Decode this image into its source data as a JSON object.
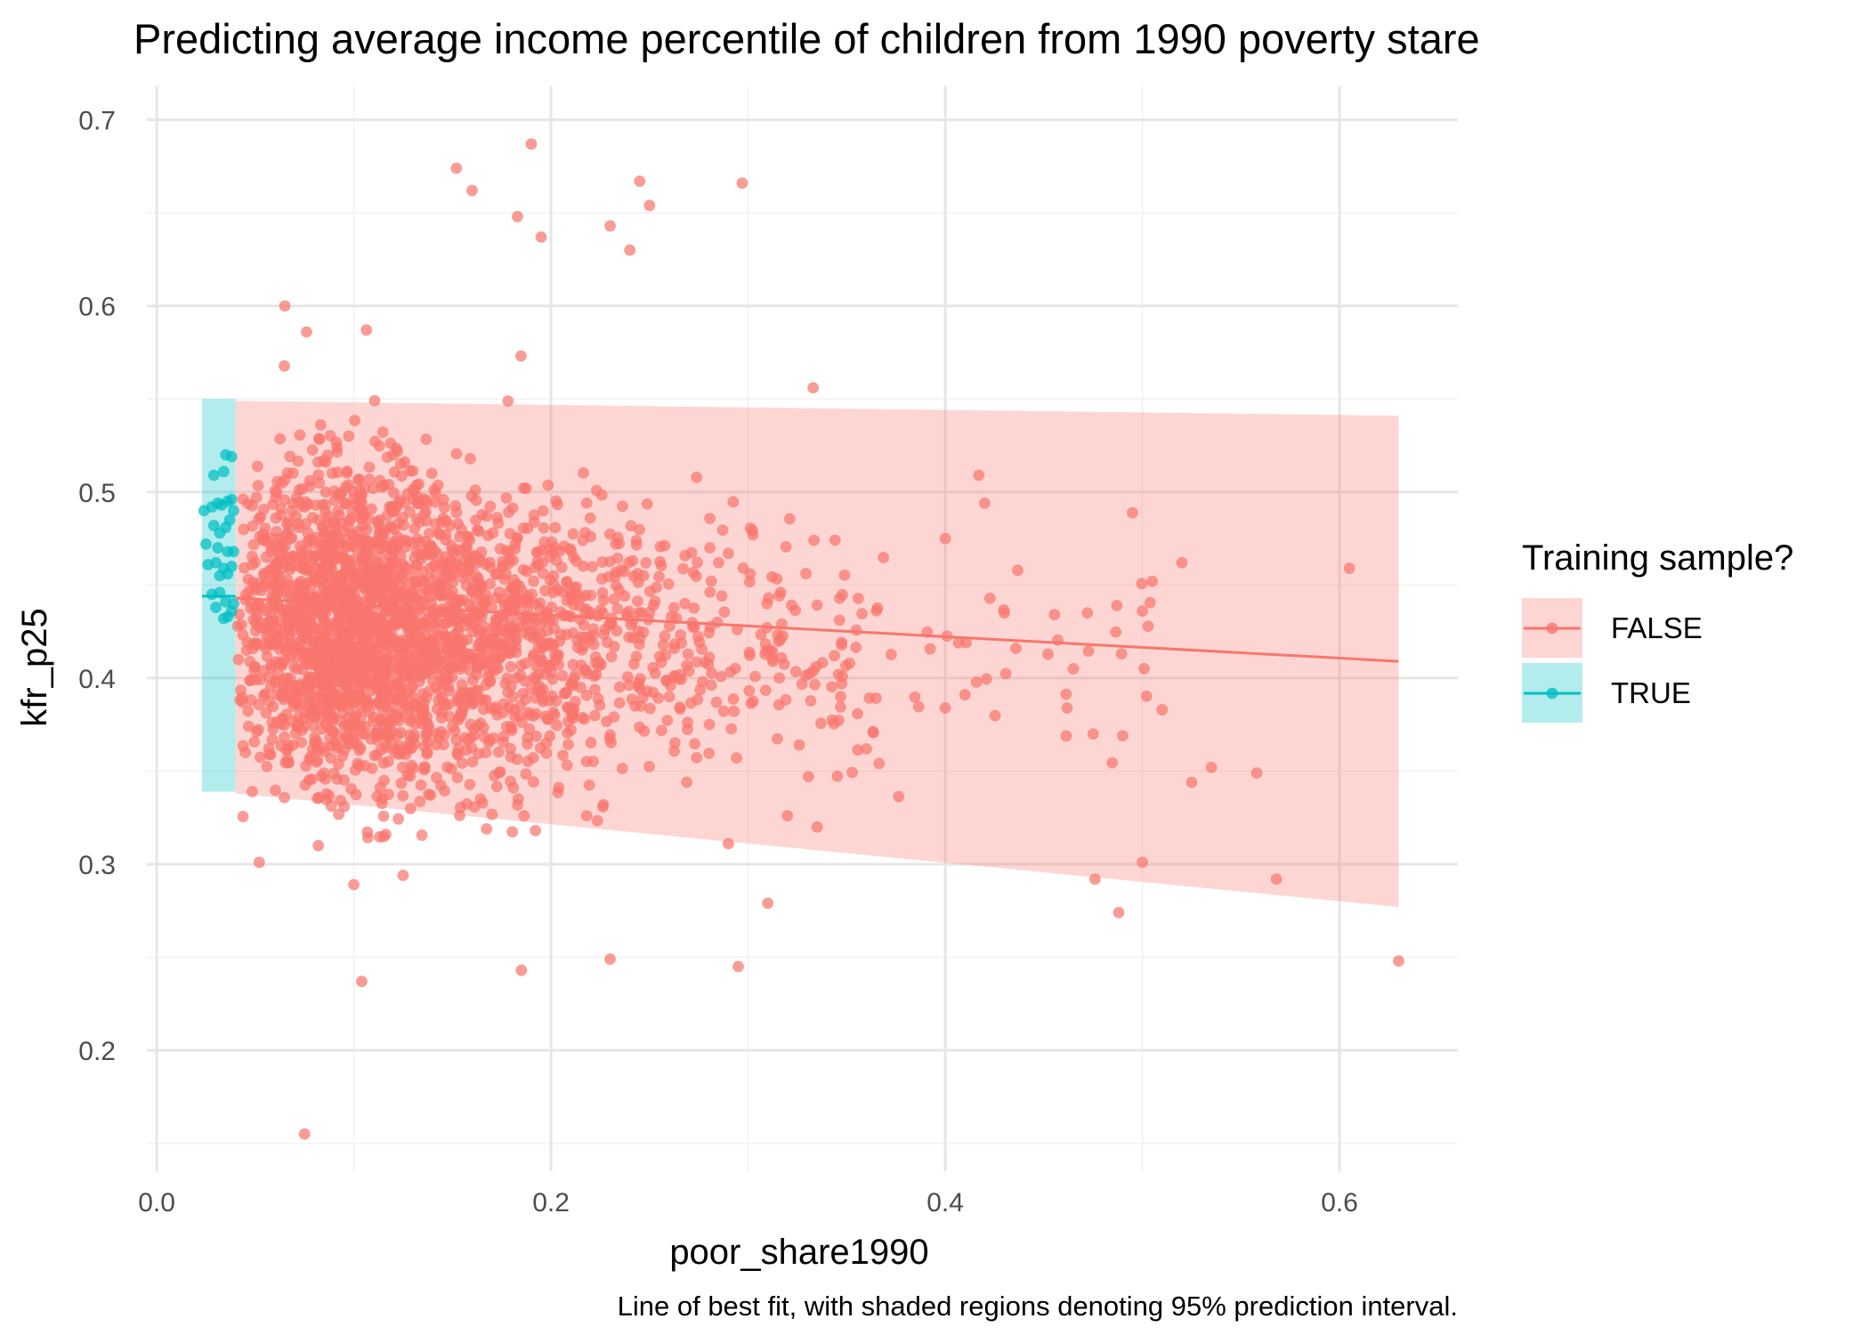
{
  "chart_data": {
    "type": "scatter",
    "title": "Predicting average income percentile of children from 1990 poverty stare",
    "subtitle": "",
    "caption": "Line of best fit, with shaded regions denoting 95% prediction interval.",
    "xlabel": "poor_share1990",
    "ylabel": "kfr_p25",
    "xlim": [
      -0.005,
      0.66
    ],
    "ylim": [
      0.135,
      0.718
    ],
    "x_ticks": [
      0.0,
      0.2,
      0.4,
      0.6
    ],
    "x_tick_labels": [
      "0.0",
      "0.2",
      "0.4",
      "0.6"
    ],
    "y_ticks": [
      0.2,
      0.3,
      0.4,
      0.5,
      0.6,
      0.7
    ],
    "y_tick_labels": [
      "0.2",
      "0.3",
      "0.4",
      "0.5",
      "0.6",
      "0.7"
    ],
    "grid": true,
    "legend": {
      "title": "Training sample?",
      "position": "right",
      "entries": [
        "FALSE",
        "TRUE"
      ]
    },
    "colors": {
      "FALSE": "#F8766D",
      "TRUE": "#00BFC4"
    },
    "series": [
      {
        "name": "FALSE",
        "x_range": [
          0.04,
          0.63
        ],
        "fit_line": {
          "x": [
            0.04,
            0.63
          ],
          "y": [
            0.443,
            0.409
          ]
        },
        "prediction_interval": {
          "x": [
            0.04,
            0.63
          ],
          "lower": [
            0.338,
            0.277
          ],
          "upper": [
            0.549,
            0.541
          ]
        },
        "highlighted_points": [
          [
            0.19,
            0.687
          ],
          [
            0.152,
            0.674
          ],
          [
            0.297,
            0.666
          ],
          [
            0.245,
            0.667
          ],
          [
            0.16,
            0.662
          ],
          [
            0.25,
            0.654
          ],
          [
            0.23,
            0.643
          ],
          [
            0.195,
            0.637
          ],
          [
            0.24,
            0.63
          ],
          [
            0.065,
            0.6
          ],
          [
            0.333,
            0.556
          ],
          [
            0.29,
            0.467
          ],
          [
            0.42,
            0.494
          ],
          [
            0.417,
            0.509
          ],
          [
            0.4,
            0.475
          ],
          [
            0.605,
            0.459
          ],
          [
            0.52,
            0.462
          ],
          [
            0.505,
            0.452
          ],
          [
            0.487,
            0.439
          ],
          [
            0.5,
            0.436
          ],
          [
            0.43,
            0.435
          ],
          [
            0.465,
            0.405
          ],
          [
            0.51,
            0.383
          ],
          [
            0.49,
            0.369
          ],
          [
            0.475,
            0.37
          ],
          [
            0.535,
            0.352
          ],
          [
            0.525,
            0.344
          ],
          [
            0.558,
            0.349
          ],
          [
            0.5,
            0.301
          ],
          [
            0.568,
            0.292
          ],
          [
            0.476,
            0.292
          ],
          [
            0.488,
            0.274
          ],
          [
            0.63,
            0.248
          ],
          [
            0.23,
            0.249
          ],
          [
            0.295,
            0.245
          ],
          [
            0.185,
            0.243
          ],
          [
            0.104,
            0.237
          ],
          [
            0.075,
            0.155
          ],
          [
            0.31,
            0.279
          ],
          [
            0.052,
            0.301
          ],
          [
            0.1,
            0.289
          ],
          [
            0.082,
            0.31
          ],
          [
            0.12,
            0.52
          ],
          [
            0.076,
            0.586
          ],
          [
            0.335,
            0.32
          ],
          [
            0.29,
            0.311
          ],
          [
            0.125,
            0.294
          ],
          [
            0.183,
            0.648
          ],
          [
            0.4,
            0.384
          ],
          [
            0.36,
            0.362
          ]
        ],
        "distribution": {
          "n_cloud": 2750,
          "x_mode": 0.14,
          "y_center": 0.425,
          "y_sd": 0.045
        }
      },
      {
        "name": "TRUE",
        "x_range": [
          0.023,
          0.04
        ],
        "fit_line": {
          "x": [
            0.023,
            0.04
          ],
          "y": [
            0.444,
            0.444
          ]
        },
        "prediction_interval": {
          "x": [
            0.023,
            0.04
          ],
          "lower": [
            0.339,
            0.339
          ],
          "upper": [
            0.55,
            0.55
          ]
        },
        "points": [
          [
            0.035,
            0.52
          ],
          [
            0.038,
            0.519
          ],
          [
            0.034,
            0.511
          ],
          [
            0.029,
            0.509
          ],
          [
            0.031,
            0.494
          ],
          [
            0.036,
            0.495
          ],
          [
            0.038,
            0.496
          ],
          [
            0.024,
            0.49
          ],
          [
            0.028,
            0.492
          ],
          [
            0.033,
            0.493
          ],
          [
            0.039,
            0.49
          ],
          [
            0.029,
            0.482
          ],
          [
            0.032,
            0.478
          ],
          [
            0.035,
            0.481
          ],
          [
            0.037,
            0.485
          ],
          [
            0.025,
            0.472
          ],
          [
            0.031,
            0.47
          ],
          [
            0.036,
            0.468
          ],
          [
            0.039,
            0.468
          ],
          [
            0.026,
            0.461
          ],
          [
            0.03,
            0.462
          ],
          [
            0.034,
            0.459
          ],
          [
            0.038,
            0.46
          ],
          [
            0.032,
            0.455
          ],
          [
            0.036,
            0.456
          ],
          [
            0.028,
            0.445
          ],
          [
            0.032,
            0.446
          ],
          [
            0.035,
            0.441
          ],
          [
            0.039,
            0.44
          ],
          [
            0.03,
            0.438
          ],
          [
            0.034,
            0.432
          ],
          [
            0.036,
            0.433
          ],
          [
            0.038,
            0.436
          ]
        ]
      }
    ]
  }
}
